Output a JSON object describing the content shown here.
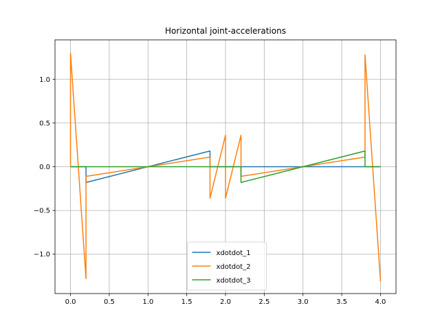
{
  "chart_data": {
    "type": "line",
    "title": "Horizontal joint-accelerations",
    "xlabel": "",
    "ylabel": "",
    "xlim": [
      -0.2,
      4.2
    ],
    "ylim": [
      -1.45,
      1.45
    ],
    "xticks": [
      0.0,
      0.5,
      1.0,
      1.5,
      2.0,
      2.5,
      3.0,
      3.5,
      4.0
    ],
    "xtick_labels": [
      "0.0",
      "0.5",
      "1.0",
      "1.5",
      "2.0",
      "2.5",
      "3.0",
      "3.5",
      "4.0"
    ],
    "yticks": [
      -1.0,
      -0.5,
      0.0,
      0.5,
      1.0
    ],
    "ytick_labels": [
      "−1.0",
      "−0.5",
      "0.0",
      "0.5",
      "1.0"
    ],
    "grid": true,
    "legend_position": "lower-center",
    "series": [
      {
        "name": "xdotdot_1",
        "color": "#1f77b4",
        "x": [
          0.0,
          0.2,
          0.2,
          1.8,
          1.8,
          4.0
        ],
        "y": [
          0.0,
          0.0,
          -0.18,
          0.18,
          0.0,
          0.0
        ]
      },
      {
        "name": "xdotdot_2",
        "color": "#ff7f0e",
        "x": [
          0.0,
          0.0,
          0.2,
          0.2,
          1.8,
          1.8,
          2.0,
          2.0,
          2.2,
          2.2,
          3.8,
          3.8,
          4.0
        ],
        "y": [
          0.0,
          1.3,
          -1.28,
          -0.11,
          0.11,
          -0.36,
          0.36,
          -0.36,
          0.36,
          -0.11,
          0.11,
          1.28,
          -1.31
        ]
      },
      {
        "name": "xdotdot_3",
        "color": "#2ca02c",
        "x": [
          0.0,
          2.2,
          2.2,
          3.8,
          3.8,
          4.0
        ],
        "y": [
          0.0,
          0.0,
          -0.18,
          0.18,
          0.0,
          0.0
        ]
      }
    ]
  }
}
